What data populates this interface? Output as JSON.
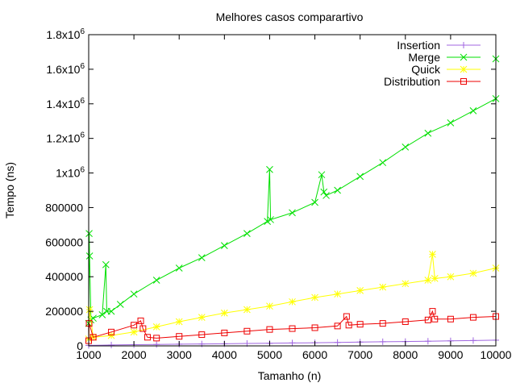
{
  "chart_data": {
    "type": "line",
    "title": "Melhores casos comparartivo",
    "xlabel": "Tamanho (n)",
    "ylabel": "Tempo (ns)",
    "xlim": [
      1000,
      10000
    ],
    "ylim": [
      0,
      1800000
    ],
    "grid": false,
    "legend_position": "top-right",
    "x_ticks": [
      1000,
      2000,
      3000,
      4000,
      5000,
      6000,
      7000,
      8000,
      9000,
      10000
    ],
    "x_tick_labels": [
      "1000",
      "2000",
      "3000",
      "4000",
      "5000",
      "6000",
      "7000",
      "8000",
      "9000",
      "10000"
    ],
    "y_ticks": [
      0,
      200000,
      400000,
      600000,
      800000,
      1000000,
      1200000,
      1400000,
      1600000,
      1800000
    ],
    "y_tick_labels": [
      {
        "base": "0",
        "exp": ""
      },
      {
        "base": "200000",
        "exp": ""
      },
      {
        "base": "400000",
        "exp": ""
      },
      {
        "base": "600000",
        "exp": ""
      },
      {
        "base": "800000",
        "exp": ""
      },
      {
        "base": "1x10",
        "exp": "6"
      },
      {
        "base": "1.2x10",
        "exp": "6"
      },
      {
        "base": "1.4x10",
        "exp": "6"
      },
      {
        "base": "1.6x10",
        "exp": "6"
      },
      {
        "base": "1.8x10",
        "exp": "6"
      }
    ],
    "series": [
      {
        "name": "Insertion",
        "color": "#a066e0",
        "marker": "plus",
        "x": [
          1000,
          1500,
          2000,
          2500,
          3000,
          3500,
          4000,
          4500,
          5000,
          5500,
          6000,
          6500,
          7000,
          7500,
          8000,
          8500,
          9000,
          9500,
          10000
        ],
        "values": [
          3000,
          5000,
          7000,
          8000,
          10000,
          11000,
          12000,
          14000,
          15000,
          17000,
          18000,
          20000,
          22000,
          24000,
          25000,
          27000,
          29000,
          31000,
          33000
        ]
      },
      {
        "name": "Merge",
        "color": "#00e000",
        "marker": "cross",
        "x": [
          1000,
          1010,
          1020,
          1050,
          1100,
          1300,
          1380,
          1400,
          1500,
          1700,
          2000,
          2500,
          3000,
          3500,
          4000,
          4500,
          4950,
          5000,
          5020,
          5500,
          6000,
          6150,
          6200,
          6250,
          6500,
          7000,
          7500,
          8000,
          8500,
          9000,
          9500,
          10000,
          10000
        ],
        "values": [
          130000,
          650000,
          520000,
          150000,
          160000,
          180000,
          470000,
          200000,
          200000,
          240000,
          300000,
          380000,
          450000,
          510000,
          580000,
          650000,
          720000,
          1020000,
          730000,
          770000,
          830000,
          990000,
          890000,
          870000,
          900000,
          980000,
          1060000,
          1150000,
          1230000,
          1290000,
          1360000,
          1430000,
          1660000
        ]
      },
      {
        "name": "Quick",
        "color": "#ffff00",
        "marker": "star",
        "x": [
          1000,
          1020,
          1100,
          1500,
          2000,
          2500,
          3000,
          3500,
          4000,
          4500,
          5000,
          5500,
          6000,
          6500,
          7000,
          7500,
          8000,
          8500,
          8600,
          8650,
          9000,
          9500,
          10000
        ],
        "values": [
          40000,
          210000,
          50000,
          60000,
          80000,
          110000,
          140000,
          165000,
          190000,
          210000,
          230000,
          255000,
          280000,
          300000,
          320000,
          340000,
          360000,
          380000,
          530000,
          390000,
          400000,
          420000,
          450000
        ]
      },
      {
        "name": "Distribution",
        "color": "#ee0000",
        "marker": "square",
        "x": [
          1000,
          1010,
          1100,
          1500,
          2000,
          2150,
          2200,
          2300,
          2500,
          3000,
          3500,
          4000,
          4500,
          5000,
          5500,
          6000,
          6500,
          6700,
          6750,
          7000,
          7500,
          8000,
          8500,
          8600,
          8650,
          9000,
          9500,
          10000
        ],
        "values": [
          30000,
          130000,
          50000,
          80000,
          120000,
          145000,
          100000,
          50000,
          45000,
          55000,
          65000,
          75000,
          85000,
          95000,
          100000,
          105000,
          115000,
          170000,
          120000,
          125000,
          130000,
          140000,
          150000,
          200000,
          155000,
          155000,
          165000,
          170000
        ]
      }
    ]
  }
}
